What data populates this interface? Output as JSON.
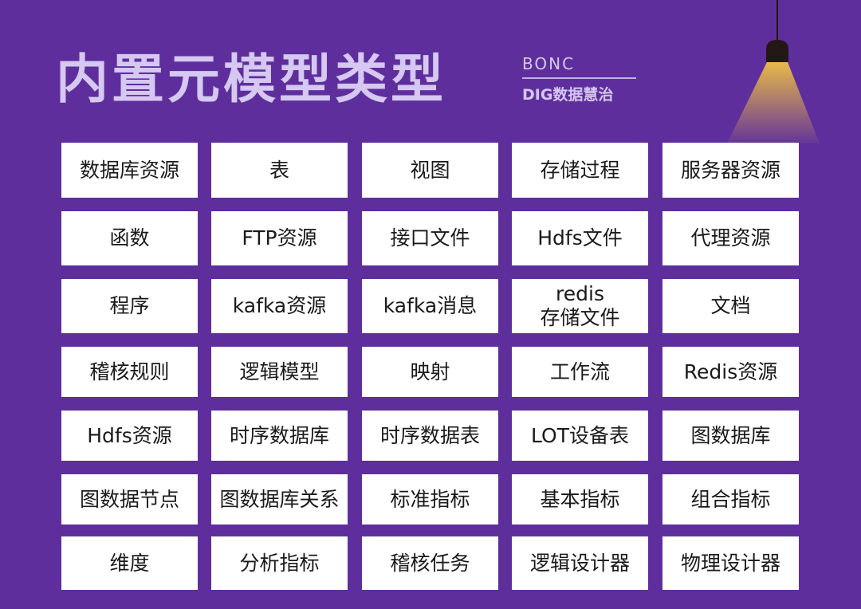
{
  "header": {
    "title": "内置元模型类型",
    "brand_top": "BONC",
    "brand_bottom": "DIG数据慧治"
  },
  "colors": {
    "background": "#5f2e9d",
    "title": "#d5c8f1",
    "lamp_light": "#e8b947",
    "lamp_shade": "#231815"
  },
  "grid": [
    [
      "数据库资源",
      "表",
      "视图",
      "存储过程",
      "服务器资源"
    ],
    [
      "函数",
      "FTP资源",
      "接口文件",
      "Hdfs文件",
      "代理资源"
    ],
    [
      "程序",
      "kafka资源",
      "kafka消息",
      "redis\n存储文件",
      "文档"
    ],
    [
      "稽核规则",
      "逻辑模型",
      "映射",
      "工作流",
      "Redis资源"
    ],
    [
      "Hdfs资源",
      "时序数据库",
      "时序数据表",
      "LOT设备表",
      "图数据库"
    ],
    [
      "图数据节点",
      "图数据库关系",
      "标准指标",
      "基本指标",
      "组合指标"
    ],
    [
      "维度",
      "分析指标",
      "稽核任务",
      "逻辑设计器",
      "物理设计器"
    ]
  ]
}
